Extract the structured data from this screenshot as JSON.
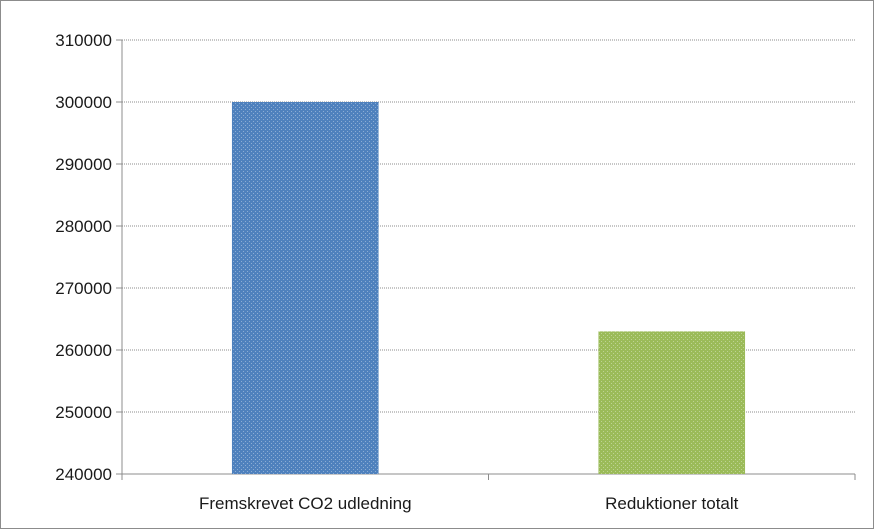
{
  "chart_data": {
    "type": "bar",
    "categories": [
      "Fremskrevet CO2 udledning",
      "Reduktioner totalt"
    ],
    "values": [
      300000,
      263000
    ],
    "bar_colors": [
      "#4f81bd",
      "#9bbb59"
    ],
    "ylim": [
      240000,
      310000
    ],
    "yticks": [
      240000,
      250000,
      260000,
      270000,
      280000,
      290000,
      300000,
      310000
    ],
    "ytick_labels": [
      "240000",
      "250000",
      "260000",
      "270000",
      "280000",
      "290000",
      "300000",
      "310000"
    ],
    "grid": true,
    "legend": "none",
    "title": "",
    "xlabel": "",
    "ylabel": ""
  }
}
